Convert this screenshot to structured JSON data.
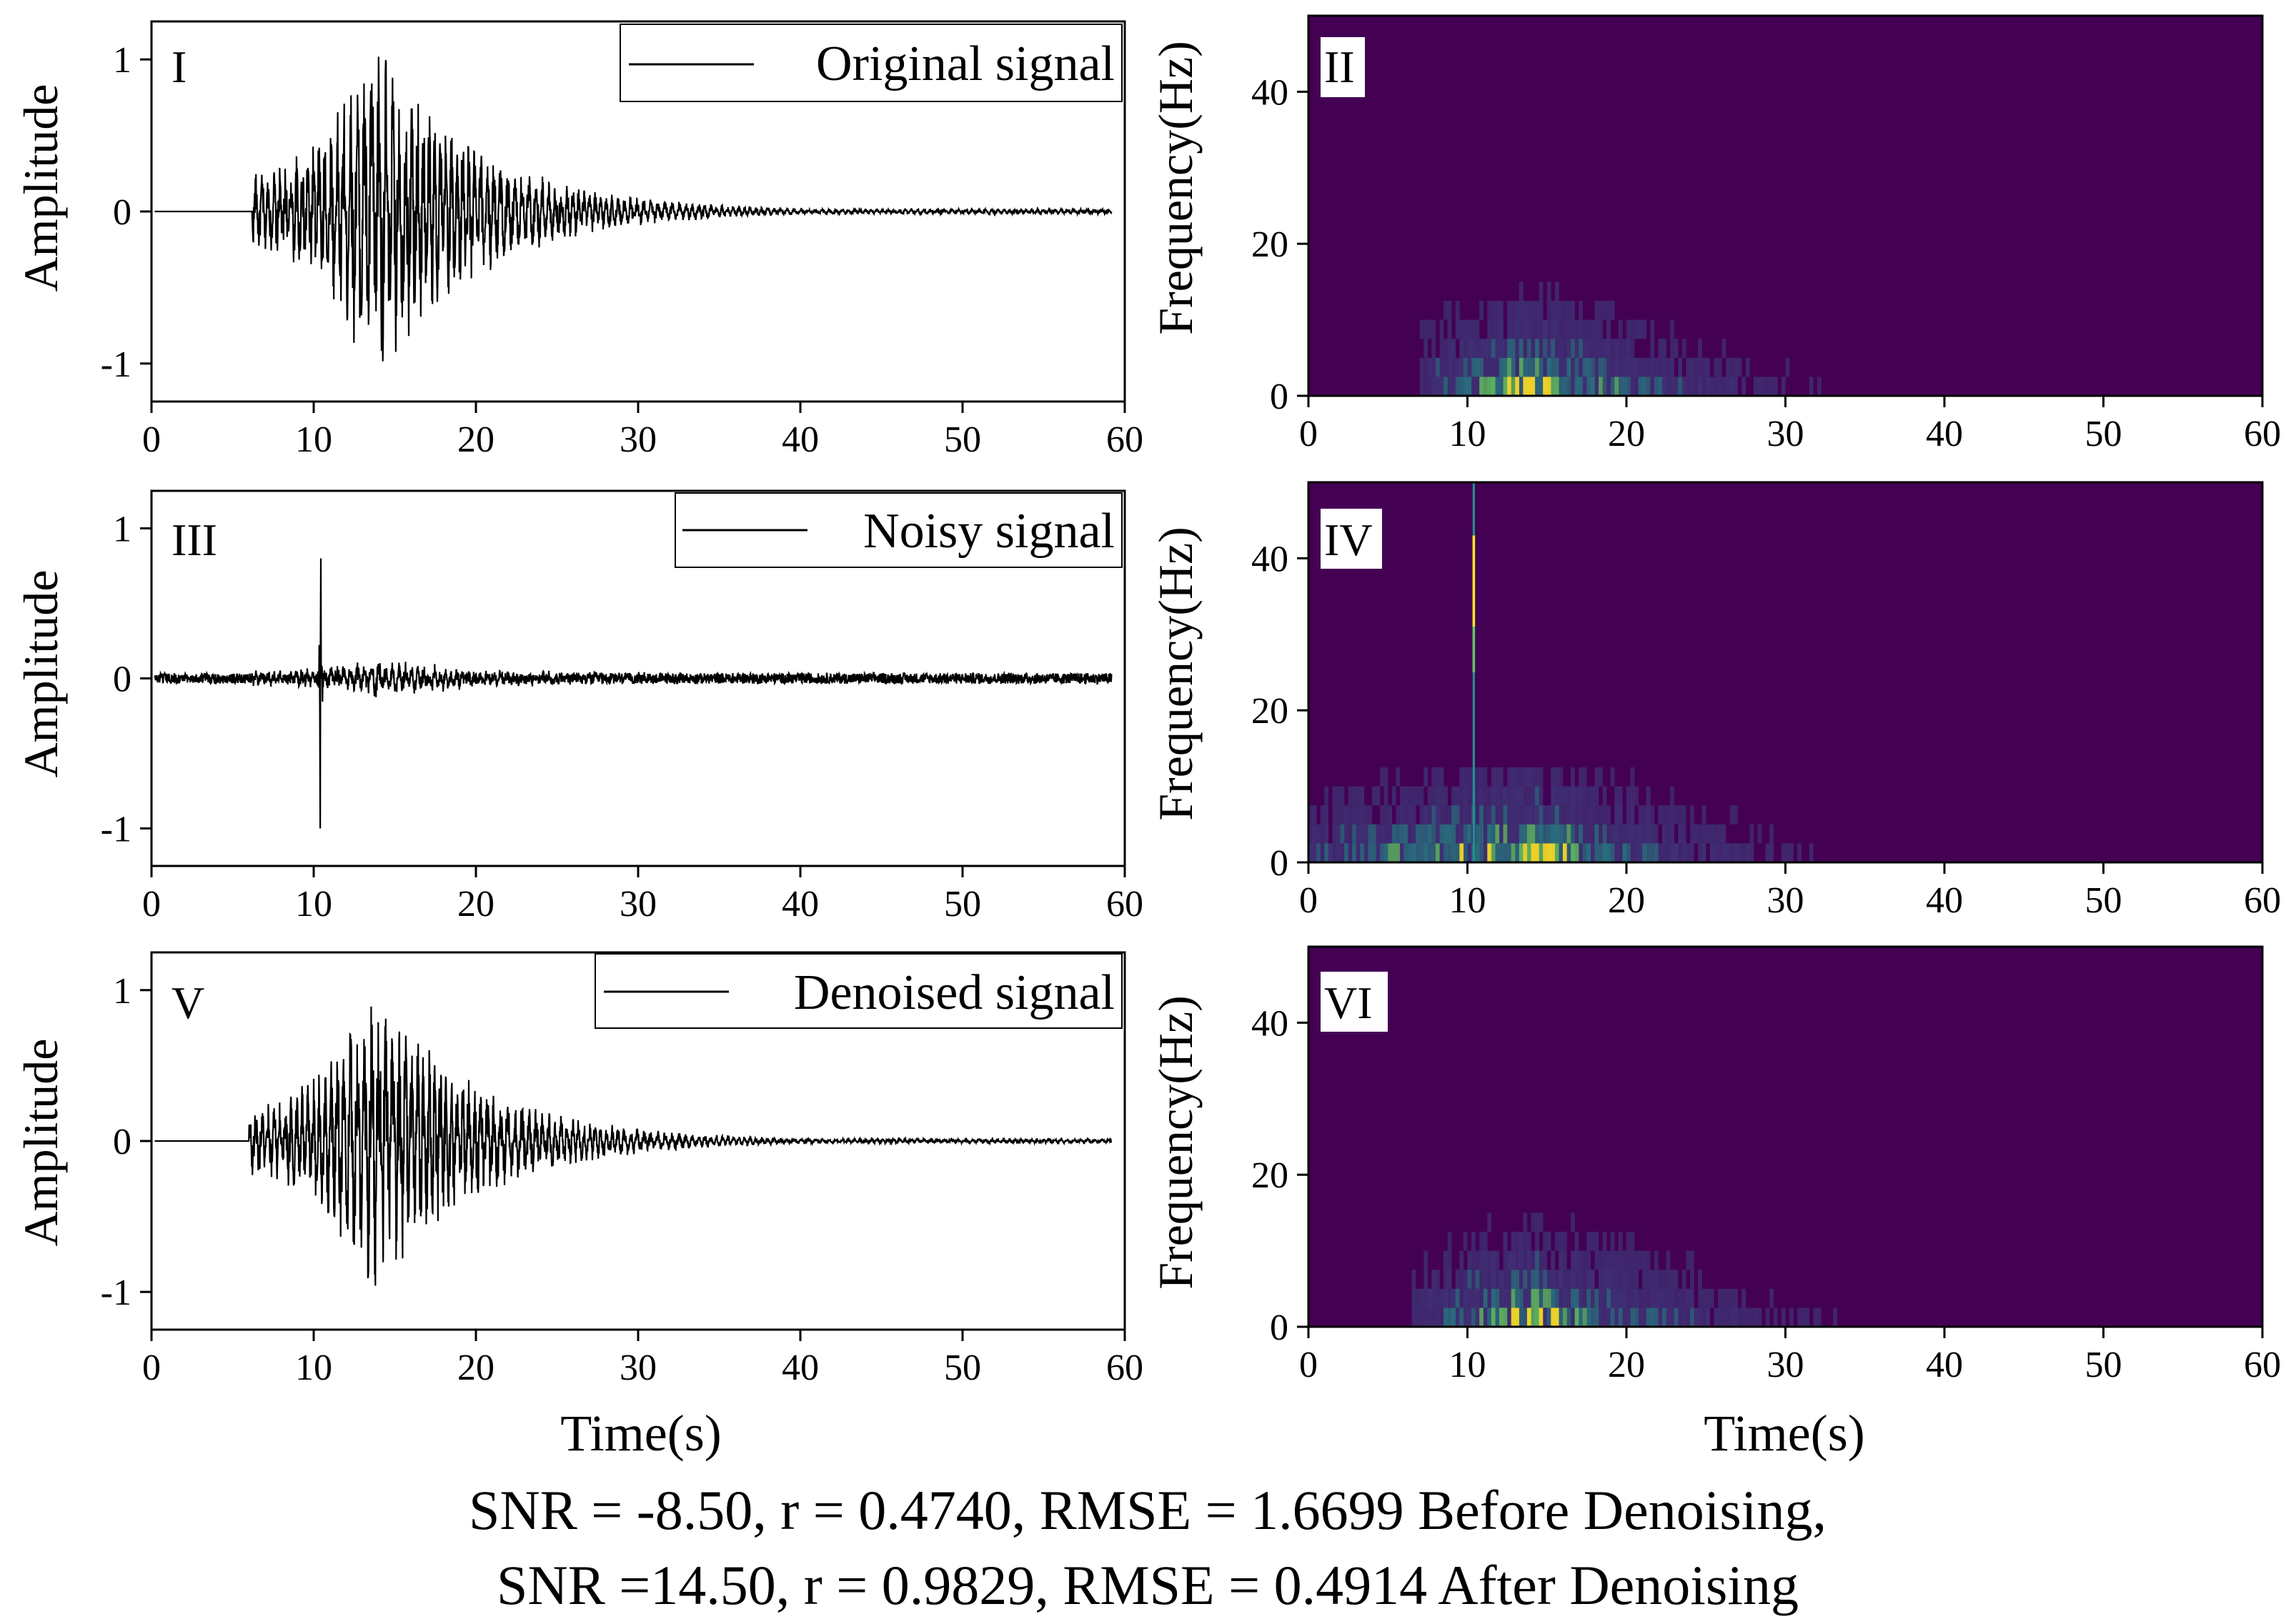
{
  "figure": {
    "time_label_left": "Time(s)",
    "time_label_right": "Time(s)",
    "caption_line1": "SNR = -8.50, r = 0.4740, RMSE = 1.6699 Before Denoising,",
    "caption_line2": "SNR =14.50, r = 0.9829, RMSE = 0.4914 After Denoising"
  },
  "colors": {
    "line": "#000000",
    "spec_background": "#440154",
    "spec_low": "#3b528b",
    "spec_mid": "#21918c",
    "spec_high": "#5ec962",
    "spec_peak": "#fde725"
  },
  "chart_data": [
    {
      "id": "I",
      "type": "line",
      "panel_label": "I",
      "legend": "Original signal",
      "ylabel": "Amplitude",
      "xlim": [
        0,
        60
      ],
      "ylim": [
        -1.25,
        1.25
      ],
      "xticks": [
        "0",
        "10",
        "20",
        "30",
        "40",
        "50",
        "60"
      ],
      "yticks": [
        "1",
        "0",
        "-1"
      ],
      "onset": 6.2,
      "peak_time": 13.8,
      "peak_amplitude": 1.0,
      "decay": 6.5,
      "noise_level": 0.0,
      "spike": null
    },
    {
      "id": "II",
      "type": "heatmap",
      "panel_label": "II",
      "ylabel": "Frequency(Hz)",
      "xlim": [
        0,
        60
      ],
      "ylim": [
        0,
        50
      ],
      "xticks": [
        "0",
        "10",
        "20",
        "30",
        "40",
        "50",
        "60"
      ],
      "yticks": [
        "40",
        "20",
        "0"
      ],
      "energy_band_hz": [
        0,
        20
      ],
      "energy_peak_time": 14,
      "onset": 7,
      "spike_time": null
    },
    {
      "id": "III",
      "type": "line",
      "panel_label": "III",
      "legend": "Noisy signal",
      "ylabel": "Amplitude",
      "xlim": [
        0,
        60
      ],
      "ylim": [
        -1.25,
        1.25
      ],
      "xticks": [
        "0",
        "10",
        "20",
        "30",
        "40",
        "50",
        "60"
      ],
      "yticks": [
        "1",
        "0",
        "-1"
      ],
      "onset": 6.2,
      "peak_time": 13.8,
      "peak_amplitude": 0.1,
      "decay": 6.5,
      "noise_level": 0.035,
      "spike": {
        "time": 10.4,
        "max": 0.8,
        "min": -1.0
      }
    },
    {
      "id": "IV",
      "type": "heatmap",
      "panel_label": "IV",
      "ylabel": "Frequency(Hz)",
      "xlim": [
        0,
        60
      ],
      "ylim": [
        0,
        50
      ],
      "xticks": [
        "0",
        "10",
        "20",
        "30",
        "40",
        "50",
        "60"
      ],
      "yticks": [
        "40",
        "20",
        "0"
      ],
      "energy_band_hz": [
        0,
        12
      ],
      "energy_peak_time": 14,
      "onset": 0,
      "spike_time": 10.4
    },
    {
      "id": "V",
      "type": "line",
      "panel_label": "V",
      "legend": "Denoised signal",
      "ylabel": "Amplitude",
      "xlim": [
        0,
        60
      ],
      "ylim": [
        -1.25,
        1.25
      ],
      "xticks": [
        "0",
        "10",
        "20",
        "30",
        "40",
        "50",
        "60"
      ],
      "yticks": [
        "1",
        "0",
        "-1"
      ],
      "onset": 6.0,
      "peak_time": 13.8,
      "peak_amplitude": 0.9,
      "decay": 6.5,
      "noise_level": 0.0,
      "spike": null
    },
    {
      "id": "VI",
      "type": "heatmap",
      "panel_label": "VI",
      "ylabel": "Frequency(Hz)",
      "xlim": [
        0,
        60
      ],
      "ylim": [
        0,
        50
      ],
      "xticks": [
        "0",
        "10",
        "20",
        "30",
        "40",
        "50",
        "60"
      ],
      "yticks": [
        "40",
        "20",
        "0"
      ],
      "energy_band_hz": [
        0,
        20
      ],
      "energy_peak_time": 14,
      "onset": 6.5,
      "spike_time": null
    }
  ]
}
